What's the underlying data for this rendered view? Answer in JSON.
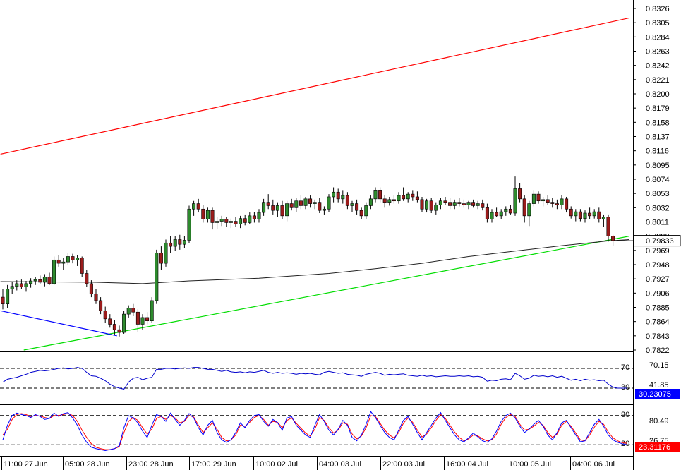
{
  "chart_data": {
    "type": "candlestick",
    "price_axis": {
      "ticks": [
        "0.8326",
        "0.8305",
        "0.8284",
        "0.8263",
        "0.8242",
        "0.8221",
        "0.8200",
        "0.8179",
        "0.8158",
        "0.8137",
        "0.8116",
        "0.8095",
        "0.8074",
        "0.8053",
        "0.8032",
        "0.8011",
        "0.7990",
        "0.7969",
        "0.7948",
        "0.7927",
        "0.7906",
        "0.7885",
        "0.7864",
        "0.7843",
        "0.7822"
      ],
      "ylim": [
        0.7822,
        0.8326
      ],
      "current_price": "0.79833",
      "current_price_value": 0.79833
    },
    "x_axis": {
      "labels": [
        "11:00 27 Jun",
        "05:00 28 Jun",
        "23:00 28 Jun",
        "17:00 29 Jun",
        "10:00 02 Jul",
        "04:00 03 Jul",
        "22:00 03 Jul",
        "16:00 04 Jul",
        "10:00 05 Jul",
        "04:00 06 Jul"
      ]
    },
    "candles": [
      [
        0.79,
        0.7912,
        0.7882,
        0.789
      ],
      [
        0.789,
        0.7918,
        0.7884,
        0.7912
      ],
      [
        0.7912,
        0.7922,
        0.7905,
        0.7916
      ],
      [
        0.7916,
        0.7925,
        0.791,
        0.792
      ],
      [
        0.792,
        0.7926,
        0.7912,
        0.7915
      ],
      [
        0.7915,
        0.7924,
        0.7908,
        0.792
      ],
      [
        0.792,
        0.7928,
        0.7914,
        0.7924
      ],
      [
        0.7924,
        0.793,
        0.7918,
        0.7926
      ],
      [
        0.7926,
        0.7932,
        0.792,
        0.7922
      ],
      [
        0.7922,
        0.7934,
        0.7916,
        0.793
      ],
      [
        0.793,
        0.7936,
        0.7918,
        0.792
      ],
      [
        0.792,
        0.796,
        0.7918,
        0.7955
      ],
      [
        0.7955,
        0.7962,
        0.7945,
        0.795
      ],
      [
        0.795,
        0.7958,
        0.794,
        0.7952
      ],
      [
        0.7952,
        0.7965,
        0.7948,
        0.796
      ],
      [
        0.796,
        0.7964,
        0.795,
        0.7955
      ],
      [
        0.7955,
        0.7962,
        0.7946,
        0.7958
      ],
      [
        0.7958,
        0.796,
        0.793,
        0.7935
      ],
      [
        0.7935,
        0.794,
        0.7915,
        0.792
      ],
      [
        0.792,
        0.7925,
        0.79,
        0.7905
      ],
      [
        0.7905,
        0.7912,
        0.789,
        0.7895
      ],
      [
        0.7895,
        0.79,
        0.7875,
        0.788
      ],
      [
        0.788,
        0.7886,
        0.7862,
        0.7868
      ],
      [
        0.7868,
        0.7875,
        0.7855,
        0.786
      ],
      [
        0.786,
        0.7866,
        0.7845,
        0.7852
      ],
      [
        0.7852,
        0.7858,
        0.7842,
        0.7848
      ],
      [
        0.7848,
        0.788,
        0.7846,
        0.7875
      ],
      [
        0.7875,
        0.7888,
        0.787,
        0.7884
      ],
      [
        0.7884,
        0.789,
        0.7872,
        0.7878
      ],
      [
        0.7878,
        0.7882,
        0.7848,
        0.786
      ],
      [
        0.786,
        0.7875,
        0.7852,
        0.787
      ],
      [
        0.787,
        0.7878,
        0.786,
        0.7865
      ],
      [
        0.7865,
        0.79,
        0.7862,
        0.7895
      ],
      [
        0.7895,
        0.797,
        0.789,
        0.7965
      ],
      [
        0.7965,
        0.7975,
        0.794,
        0.795
      ],
      [
        0.795,
        0.7985,
        0.7945,
        0.798
      ],
      [
        0.798,
        0.799,
        0.7965,
        0.7975
      ],
      [
        0.7975,
        0.799,
        0.7968,
        0.7985
      ],
      [
        0.7985,
        0.7992,
        0.797,
        0.7978
      ],
      [
        0.7978,
        0.799,
        0.7972,
        0.7984
      ],
      [
        0.7984,
        0.8035,
        0.798,
        0.803
      ],
      [
        0.803,
        0.8042,
        0.802,
        0.8038
      ],
      [
        0.8038,
        0.8045,
        0.8025,
        0.803
      ],
      [
        0.803,
        0.8036,
        0.801,
        0.8015
      ],
      [
        0.8015,
        0.8032,
        0.801,
        0.8028
      ],
      [
        0.8028,
        0.8032,
        0.8,
        0.801
      ],
      [
        0.801,
        0.8018,
        0.8,
        0.8012
      ],
      [
        0.8012,
        0.802,
        0.8005,
        0.8015
      ],
      [
        0.8015,
        0.8018,
        0.8004,
        0.801
      ],
      [
        0.801,
        0.8016,
        0.8002,
        0.8012
      ],
      [
        0.8012,
        0.8018,
        0.8004,
        0.8008
      ],
      [
        0.8008,
        0.802,
        0.8002,
        0.8016
      ],
      [
        0.8016,
        0.8022,
        0.8006,
        0.801
      ],
      [
        0.801,
        0.8025,
        0.8008,
        0.802
      ],
      [
        0.802,
        0.8026,
        0.801,
        0.8015
      ],
      [
        0.8015,
        0.803,
        0.801,
        0.8025
      ],
      [
        0.8025,
        0.8045,
        0.802,
        0.804
      ],
      [
        0.804,
        0.8052,
        0.803,
        0.8035
      ],
      [
        0.8035,
        0.8044,
        0.8022,
        0.8028
      ],
      [
        0.8028,
        0.804,
        0.8018,
        0.8035
      ],
      [
        0.8035,
        0.8042,
        0.8015,
        0.802
      ],
      [
        0.802,
        0.8042,
        0.8012,
        0.8038
      ],
      [
        0.8038,
        0.8045,
        0.8028,
        0.8032
      ],
      [
        0.8032,
        0.8046,
        0.8026,
        0.8042
      ],
      [
        0.8042,
        0.805,
        0.803,
        0.8035
      ],
      [
        0.8035,
        0.8048,
        0.803,
        0.8045
      ],
      [
        0.8045,
        0.805,
        0.8032,
        0.8038
      ],
      [
        0.8038,
        0.8044,
        0.803,
        0.804
      ],
      [
        0.804,
        0.8046,
        0.8024,
        0.8028
      ],
      [
        0.8028,
        0.8034,
        0.8022,
        0.803
      ],
      [
        0.803,
        0.8052,
        0.8026,
        0.8048
      ],
      [
        0.8048,
        0.8062,
        0.804,
        0.8055
      ],
      [
        0.8055,
        0.806,
        0.804,
        0.8045
      ],
      [
        0.8045,
        0.8058,
        0.8038,
        0.805
      ],
      [
        0.805,
        0.8055,
        0.803,
        0.8035
      ],
      [
        0.8035,
        0.8042,
        0.8026,
        0.8038
      ],
      [
        0.8038,
        0.8044,
        0.8022,
        0.8028
      ],
      [
        0.8028,
        0.8032,
        0.8015,
        0.802
      ],
      [
        0.802,
        0.804,
        0.8015,
        0.8035
      ],
      [
        0.8035,
        0.805,
        0.803,
        0.8045
      ],
      [
        0.8045,
        0.8062,
        0.804,
        0.8058
      ],
      [
        0.8058,
        0.8062,
        0.804,
        0.8045
      ],
      [
        0.8045,
        0.805,
        0.8032,
        0.804
      ],
      [
        0.804,
        0.8048,
        0.8035,
        0.8044
      ],
      [
        0.8044,
        0.805,
        0.8038,
        0.8042
      ],
      [
        0.8042,
        0.8055,
        0.8038,
        0.805
      ],
      [
        0.805,
        0.8062,
        0.8042,
        0.8045
      ],
      [
        0.8045,
        0.8055,
        0.804,
        0.8052
      ],
      [
        0.8052,
        0.8058,
        0.8042,
        0.8048
      ],
      [
        0.8048,
        0.8056,
        0.804,
        0.8044
      ],
      [
        0.8044,
        0.8048,
        0.8025,
        0.803
      ],
      [
        0.803,
        0.8045,
        0.8025,
        0.8042
      ],
      [
        0.8042,
        0.8046,
        0.8024,
        0.8028
      ],
      [
        0.8028,
        0.804,
        0.8022,
        0.8036
      ],
      [
        0.8036,
        0.8046,
        0.803,
        0.8042
      ],
      [
        0.8042,
        0.8048,
        0.8036,
        0.804
      ],
      [
        0.804,
        0.8046,
        0.803,
        0.8035
      ],
      [
        0.8035,
        0.8044,
        0.803,
        0.804
      ],
      [
        0.804,
        0.8046,
        0.8034,
        0.8038
      ],
      [
        0.8038,
        0.8044,
        0.8032,
        0.8036
      ],
      [
        0.8036,
        0.8042,
        0.803,
        0.804
      ],
      [
        0.804,
        0.8044,
        0.8032,
        0.8035
      ],
      [
        0.8035,
        0.8042,
        0.803,
        0.8038
      ],
      [
        0.8038,
        0.8044,
        0.8028,
        0.8032
      ],
      [
        0.8032,
        0.8038,
        0.801,
        0.8015
      ],
      [
        0.8015,
        0.803,
        0.801,
        0.8025
      ],
      [
        0.8025,
        0.8032,
        0.8018,
        0.802
      ],
      [
        0.802,
        0.803,
        0.8015,
        0.8026
      ],
      [
        0.8026,
        0.8034,
        0.802,
        0.803
      ],
      [
        0.803,
        0.8036,
        0.8022,
        0.8024
      ],
      [
        0.8024,
        0.8078,
        0.802,
        0.806
      ],
      [
        0.806,
        0.8068,
        0.804,
        0.8045
      ],
      [
        0.8045,
        0.805,
        0.801,
        0.802
      ],
      [
        0.802,
        0.8042,
        0.8005,
        0.8038
      ],
      [
        0.8038,
        0.8058,
        0.8034,
        0.8052
      ],
      [
        0.8052,
        0.8056,
        0.8038,
        0.8042
      ],
      [
        0.8042,
        0.8048,
        0.8034,
        0.8044
      ],
      [
        0.8044,
        0.805,
        0.8036,
        0.804
      ],
      [
        0.804,
        0.8046,
        0.8032,
        0.8038
      ],
      [
        0.8038,
        0.8044,
        0.803,
        0.8036
      ],
      [
        0.8036,
        0.805,
        0.803,
        0.8045
      ],
      [
        0.8045,
        0.8048,
        0.8025,
        0.803
      ],
      [
        0.803,
        0.8034,
        0.8016,
        0.802
      ],
      [
        0.802,
        0.803,
        0.8012,
        0.8026
      ],
      [
        0.8026,
        0.803,
        0.8012,
        0.8016
      ],
      [
        0.8016,
        0.8028,
        0.801,
        0.8024
      ],
      [
        0.8024,
        0.8032,
        0.8015,
        0.802
      ],
      [
        0.802,
        0.803,
        0.8016,
        0.8026
      ],
      [
        0.8026,
        0.8032,
        0.801,
        0.8015
      ],
      [
        0.8015,
        0.8022,
        0.8004,
        0.8018
      ],
      [
        0.8018,
        0.8022,
        0.7982,
        0.799
      ],
      [
        0.799,
        0.7992,
        0.7976,
        0.7983
      ]
    ],
    "overlays": [
      {
        "kind": "trendline",
        "color": "#ff0000",
        "from": [
          -0.5,
          0.8111
        ],
        "to": [
          134.5,
          0.8312
        ]
      },
      {
        "kind": "trendline",
        "color": "#00dd00",
        "from": [
          4.5,
          0.7822
        ],
        "to": [
          134.5,
          0.799
        ]
      },
      {
        "kind": "trendline",
        "color": "#0000ff",
        "from": [
          -0.5,
          0.788
        ],
        "to": [
          24.5,
          0.7843
        ]
      },
      {
        "kind": "moving_average",
        "color": "#222222",
        "points": [
          [
            -0.5,
            0.7923
          ],
          [
            20,
            0.7922
          ],
          [
            30,
            0.792
          ],
          [
            40,
            0.7924
          ],
          [
            55,
            0.7928
          ],
          [
            70,
            0.7935
          ],
          [
            80,
            0.7942
          ],
          [
            90,
            0.795
          ],
          [
            100,
            0.796
          ],
          [
            110,
            0.7968
          ],
          [
            120,
            0.7976
          ],
          [
            130,
            0.7983
          ],
          [
            134.5,
            0.7985
          ]
        ]
      }
    ],
    "rsi": {
      "levels": [
        "70",
        "30"
      ],
      "level_values": [
        70,
        30
      ],
      "label_value": "70.15",
      "label_mid": "41.85",
      "current": "30.23075",
      "current_color": "#0000ff",
      "values": [
        42,
        48,
        50,
        52,
        55,
        58,
        62,
        64,
        66,
        65,
        66,
        68,
        70,
        71,
        69,
        70,
        72,
        70,
        62,
        55,
        54,
        50,
        45,
        38,
        33,
        30,
        28,
        42,
        50,
        52,
        47,
        50,
        52,
        68,
        68,
        70,
        70,
        69,
        70,
        71,
        70,
        72,
        72,
        70,
        68,
        68,
        66,
        64,
        66,
        63,
        62,
        63,
        61,
        63,
        62,
        64,
        66,
        62,
        60,
        62,
        60,
        61,
        60,
        58,
        60,
        59,
        60,
        58,
        57,
        62,
        64,
        62,
        60,
        61,
        58,
        57,
        56,
        54,
        58,
        60,
        62,
        60,
        56,
        58,
        57,
        58,
        59,
        56,
        55,
        54,
        56,
        54,
        55,
        53,
        54,
        55,
        54,
        54,
        55,
        54,
        55,
        53,
        54,
        52,
        44,
        46,
        45,
        48,
        49,
        47,
        60,
        55,
        48,
        50,
        56,
        54,
        55,
        53,
        55,
        52,
        54,
        50,
        46,
        48,
        45,
        48,
        46,
        47,
        45,
        46,
        38,
        32,
        30,
        30,
        30
      ]
    },
    "stochastic": {
      "levels": [
        "80",
        "20"
      ],
      "level_values": [
        80,
        20
      ],
      "label_value": "80.49",
      "label_mid": "26.75",
      "current": "23.31176",
      "current_color": "#ff0000",
      "k_color": "#0000ff",
      "d_color": "#ff0000",
      "k": [
        30,
        60,
        80,
        85,
        82,
        80,
        76,
        82,
        78,
        72,
        74,
        85,
        78,
        84,
        86,
        75,
        60,
        40,
        25,
        15,
        12,
        10,
        8,
        10,
        12,
        18,
        55,
        80,
        75,
        65,
        48,
        35,
        60,
        82,
        78,
        68,
        85,
        72,
        60,
        70,
        84,
        75,
        55,
        40,
        60,
        70,
        45,
        30,
        25,
        30,
        45,
        65,
        55,
        70,
        80,
        82,
        68,
        58,
        72,
        65,
        50,
        75,
        78,
        60,
        50,
        40,
        35,
        60,
        82,
        68,
        50,
        40,
        52,
        70,
        60,
        35,
        28,
        40,
        62,
        88,
        76,
        60,
        45,
        35,
        30,
        50,
        70,
        78,
        62,
        45,
        30,
        45,
        60,
        75,
        86,
        70,
        55,
        40,
        30,
        26,
        34,
        44,
        36,
        28,
        25,
        32,
        48,
        68,
        80,
        85,
        75,
        58,
        45,
        52,
        62,
        70,
        58,
        40,
        30,
        45,
        65,
        70,
        55,
        40,
        26,
        28,
        45,
        62,
        72,
        58,
        40,
        30,
        25,
        22,
        20
      ],
      "d": [
        40,
        52,
        72,
        82,
        84,
        82,
        78,
        80,
        79,
        76,
        74,
        80,
        80,
        82,
        84,
        80,
        68,
        50,
        35,
        22,
        15,
        12,
        10,
        10,
        12,
        16,
        45,
        68,
        76,
        70,
        55,
        42,
        52,
        74,
        78,
        72,
        80,
        75,
        65,
        68,
        80,
        77,
        60,
        45,
        55,
        65,
        52,
        35,
        28,
        30,
        40,
        60,
        58,
        66,
        76,
        80,
        72,
        60,
        68,
        66,
        55,
        70,
        75,
        64,
        54,
        44,
        38,
        52,
        76,
        70,
        55,
        44,
        50,
        65,
        62,
        42,
        32,
        38,
        55,
        80,
        78,
        64,
        50,
        40,
        34,
        45,
        64,
        75,
        66,
        50,
        36,
        42,
        55,
        70,
        82,
        74,
        60,
        46,
        35,
        28,
        32,
        40,
        38,
        32,
        28,
        30,
        42,
        62,
        76,
        82,
        78,
        62,
        50,
        52,
        58,
        66,
        60,
        45,
        35,
        42,
        60,
        68,
        58,
        44,
        30,
        28,
        40,
        56,
        68,
        62,
        46,
        34,
        28,
        24,
        23
      ]
    }
  }
}
